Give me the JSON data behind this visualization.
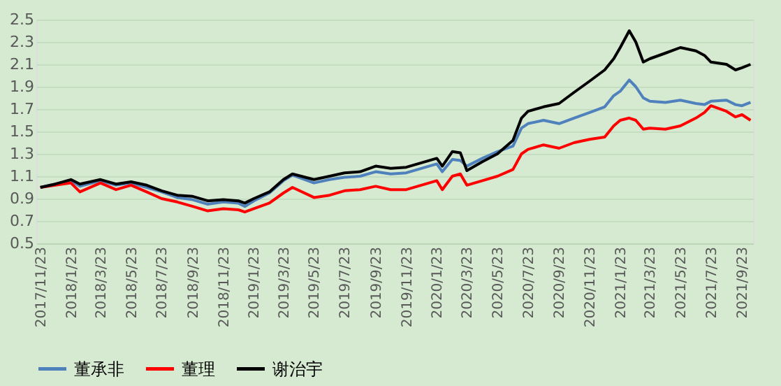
{
  "chart_data": {
    "type": "line",
    "x": [
      "2017-11-23",
      "2017-12-23",
      "2018-01-23",
      "2018-02-10",
      "2018-03-23",
      "2018-04-23",
      "2018-05-23",
      "2018-06-23",
      "2018-07-23",
      "2018-08-23",
      "2018-09-23",
      "2018-10-23",
      "2018-11-23",
      "2018-12-23",
      "2019-01-05",
      "2019-01-23",
      "2019-02-23",
      "2019-03-23",
      "2019-04-10",
      "2019-05-23",
      "2019-06-23",
      "2019-07-23",
      "2019-08-23",
      "2019-09-23",
      "2019-10-23",
      "2019-11-23",
      "2019-12-23",
      "2020-01-23",
      "2020-02-03",
      "2020-02-23",
      "2020-03-10",
      "2020-03-23",
      "2020-04-23",
      "2020-05-23",
      "2020-06-23",
      "2020-07-10",
      "2020-07-23",
      "2020-08-23",
      "2020-09-23",
      "2020-10-23",
      "2020-11-23",
      "2020-12-23",
      "2021-01-10",
      "2021-01-23",
      "2021-02-10",
      "2021-02-23",
      "2021-03-10",
      "2021-03-23",
      "2021-04-23",
      "2021-05-23",
      "2021-06-23",
      "2021-07-10",
      "2021-07-23",
      "2021-08-23",
      "2021-09-10",
      "2021-09-23",
      "2021-10-10"
    ],
    "series": [
      {
        "name": "董承非",
        "color": "#4f81bd",
        "values": [
          1.0,
          1.03,
          1.06,
          1.01,
          1.06,
          1.02,
          1.04,
          1.0,
          0.96,
          0.91,
          0.89,
          0.85,
          0.87,
          0.86,
          0.83,
          0.88,
          0.95,
          1.06,
          1.11,
          1.04,
          1.07,
          1.09,
          1.1,
          1.14,
          1.12,
          1.13,
          1.17,
          1.21,
          1.14,
          1.25,
          1.24,
          1.19,
          1.26,
          1.32,
          1.37,
          1.53,
          1.57,
          1.6,
          1.57,
          1.62,
          1.67,
          1.72,
          1.82,
          1.86,
          1.96,
          1.9,
          1.8,
          1.77,
          1.76,
          1.78,
          1.75,
          1.74,
          1.77,
          1.78,
          1.74,
          1.73,
          1.76
        ]
      },
      {
        "name": "董理",
        "color": "#ff0000",
        "values": [
          1.0,
          1.02,
          1.04,
          0.96,
          1.04,
          0.98,
          1.02,
          0.96,
          0.9,
          0.87,
          0.83,
          0.79,
          0.81,
          0.8,
          0.78,
          0.81,
          0.86,
          0.95,
          1.0,
          0.91,
          0.93,
          0.97,
          0.98,
          1.01,
          0.98,
          0.98,
          1.02,
          1.06,
          0.98,
          1.1,
          1.12,
          1.02,
          1.06,
          1.1,
          1.16,
          1.3,
          1.34,
          1.38,
          1.35,
          1.4,
          1.43,
          1.45,
          1.55,
          1.6,
          1.62,
          1.6,
          1.52,
          1.53,
          1.52,
          1.55,
          1.62,
          1.67,
          1.73,
          1.68,
          1.63,
          1.65,
          1.6
        ]
      },
      {
        "name": "谢治宇",
        "color": "#000000",
        "values": [
          1.0,
          1.03,
          1.07,
          1.03,
          1.07,
          1.03,
          1.05,
          1.02,
          0.97,
          0.93,
          0.92,
          0.88,
          0.89,
          0.88,
          0.86,
          0.9,
          0.96,
          1.07,
          1.12,
          1.07,
          1.1,
          1.13,
          1.14,
          1.19,
          1.17,
          1.18,
          1.22,
          1.26,
          1.19,
          1.32,
          1.31,
          1.15,
          1.23,
          1.3,
          1.42,
          1.62,
          1.68,
          1.72,
          1.75,
          1.85,
          1.95,
          2.05,
          2.15,
          2.25,
          2.4,
          2.3,
          2.12,
          2.15,
          2.2,
          2.25,
          2.22,
          2.18,
          2.12,
          2.1,
          2.05,
          2.07,
          2.1
        ]
      }
    ],
    "xlim": [
      "2017-11-15",
      "2021-10-15"
    ],
    "xticks": [
      {
        "value": "2017-11-23",
        "label": "2017/11/23"
      },
      {
        "value": "2018-01-23",
        "label": "2018/1/23"
      },
      {
        "value": "2018-03-23",
        "label": "2018/3/23"
      },
      {
        "value": "2018-05-23",
        "label": "2018/5/23"
      },
      {
        "value": "2018-07-23",
        "label": "2018/7/23"
      },
      {
        "value": "2018-09-23",
        "label": "2018/9/23"
      },
      {
        "value": "2018-11-23",
        "label": "2018/11/23"
      },
      {
        "value": "2019-01-23",
        "label": "2019/1/23"
      },
      {
        "value": "2019-03-23",
        "label": "2019/3/23"
      },
      {
        "value": "2019-05-23",
        "label": "2019/5/23"
      },
      {
        "value": "2019-07-23",
        "label": "2019/7/23"
      },
      {
        "value": "2019-09-23",
        "label": "2019/9/23"
      },
      {
        "value": "2019-11-23",
        "label": "2019/11/23"
      },
      {
        "value": "2020-01-23",
        "label": "2020/1/23"
      },
      {
        "value": "2020-03-23",
        "label": "2020/3/23"
      },
      {
        "value": "2020-05-23",
        "label": "2020/5/23"
      },
      {
        "value": "2020-07-23",
        "label": "2020/7/23"
      },
      {
        "value": "2020-09-23",
        "label": "2020/9/23"
      },
      {
        "value": "2020-11-23",
        "label": "2020/11/23"
      },
      {
        "value": "2021-01-23",
        "label": "2021/1/23"
      },
      {
        "value": "2021-03-23",
        "label": "2021/3/23"
      },
      {
        "value": "2021-05-23",
        "label": "2021/5/23"
      },
      {
        "value": "2021-07-23",
        "label": "2021/7/23"
      },
      {
        "value": "2021-09-23",
        "label": "2021/9/23"
      }
    ],
    "ylim": [
      0.5,
      2.5
    ],
    "yticks": [
      0.5,
      0.7,
      0.9,
      1.1,
      1.3,
      1.5,
      1.7,
      1.9,
      2.1,
      2.3,
      2.5
    ],
    "grid": "y",
    "legend": "bottom",
    "marker": "none",
    "line_style": "solid"
  }
}
